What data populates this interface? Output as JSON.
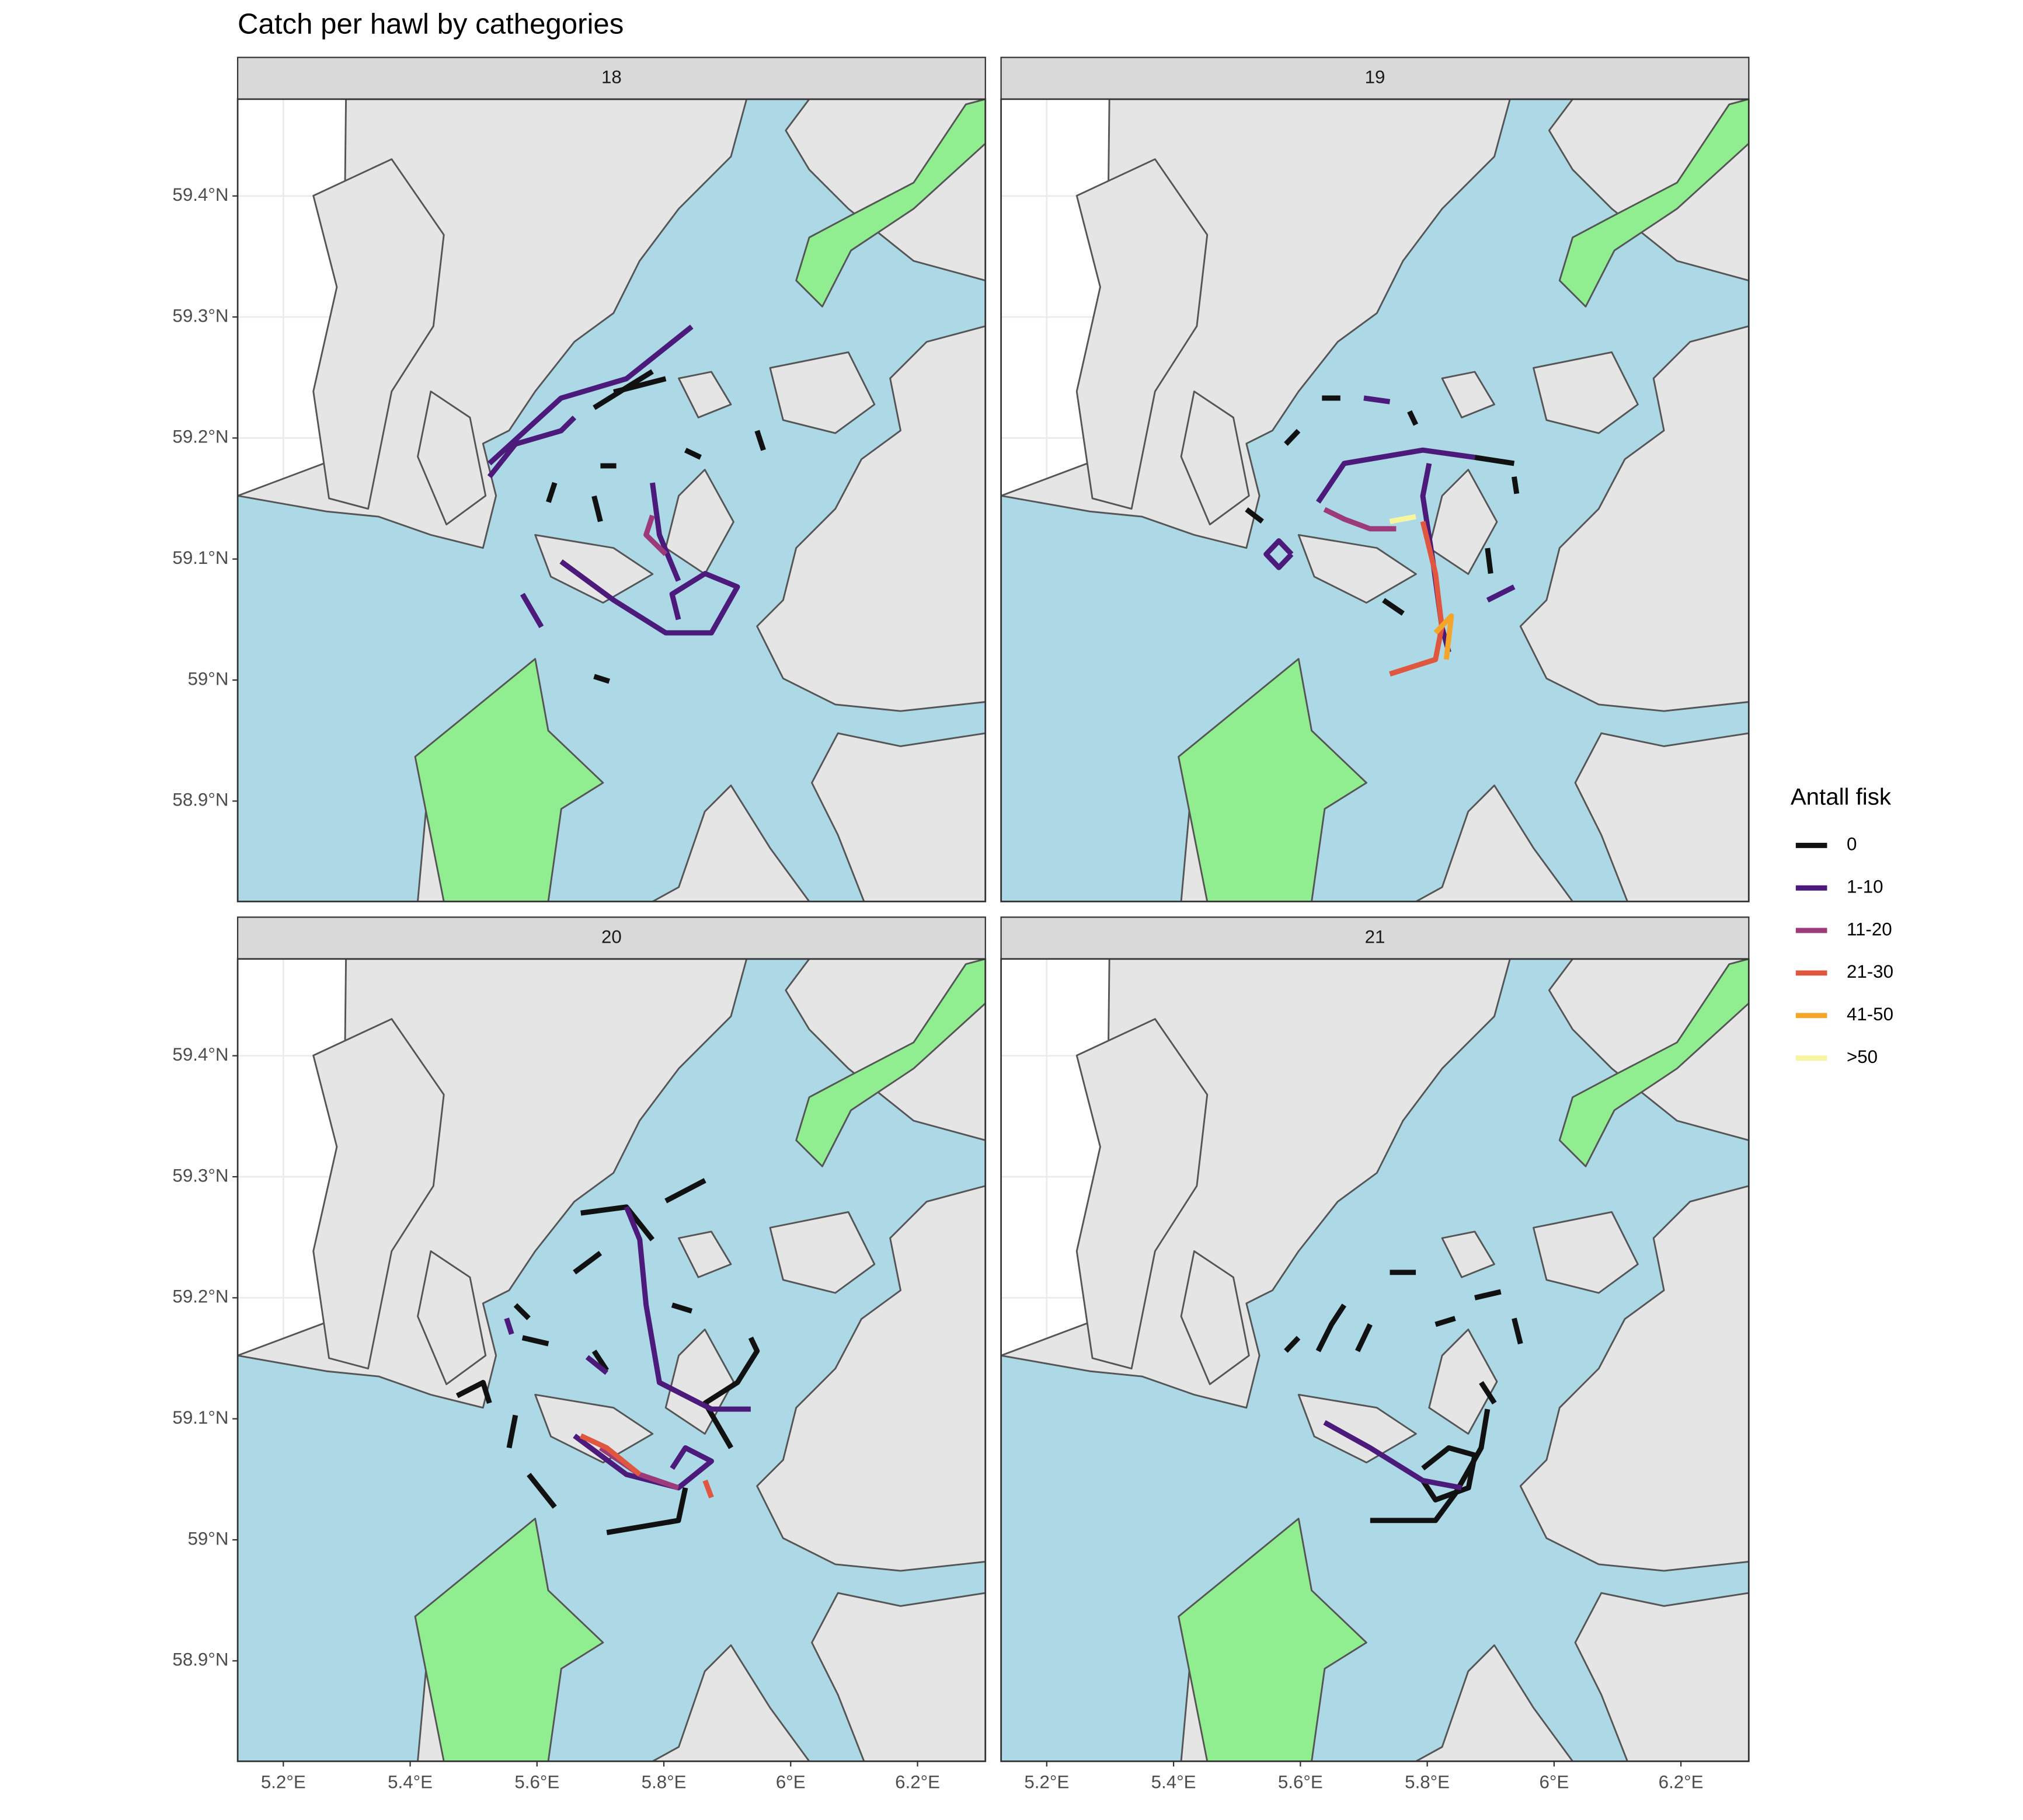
{
  "chart_data": {
    "type": "map",
    "title": "Catch per hawl by cathegories",
    "legend_title": "Antall fisk",
    "facets": [
      "18",
      "19",
      "20",
      "21"
    ],
    "xlim": [
      5.128,
      6.307
    ],
    "ylim": [
      58.817,
      59.48
    ],
    "xticks": [
      {
        "value": 5.2,
        "label": "5.2°E"
      },
      {
        "value": 5.4,
        "label": "5.4°E"
      },
      {
        "value": 5.6,
        "label": "5.6°E"
      },
      {
        "value": 5.8,
        "label": "5.8°E"
      },
      {
        "value": 6,
        "label": "6°E"
      },
      {
        "value": 6.2,
        "label": "6.2°E"
      }
    ],
    "yticks": [
      {
        "value": 58.9,
        "label": "58.9°N"
      },
      {
        "value": 59,
        "label": "59°N"
      },
      {
        "value": 59.1,
        "label": "59.1°N"
      },
      {
        "value": 59.2,
        "label": "59.2°N"
      },
      {
        "value": 59.3,
        "label": "59.3°N"
      },
      {
        "value": 59.4,
        "label": "59.4°N"
      }
    ],
    "grid": true,
    "series": [
      {
        "name": "0",
        "color": "#111111",
        "tracks": [
          [
            {
              "x": [
                5.69,
                5.782
              ],
              "y": [
                59.225,
                59.255
              ]
            },
            {
              "x": [
                5.721,
                5.803
              ],
              "y": [
                59.238,
                59.249
              ]
            },
            {
              "x": [
                5.7,
                5.725
              ],
              "y": [
                59.177,
                59.177
              ]
            },
            {
              "x": [
                5.628,
                5.618
              ],
              "y": [
                59.163,
                59.147
              ]
            },
            {
              "x": [
                5.69,
                5.7
              ],
              "y": [
                59.152,
                59.131
              ]
            },
            {
              "x": [
                5.834,
                5.858
              ],
              "y": [
                59.19,
                59.184
              ]
            },
            {
              "x": [
                5.947,
                5.957
              ],
              "y": [
                59.206,
                59.19
              ]
            },
            {
              "x": [
                5.69,
                5.714
              ],
              "y": [
                59.003,
                58.999
              ]
            }
          ],
          [
            {
              "x": [
                5.577,
                5.597
              ],
              "y": [
                59.195,
                59.206
              ]
            },
            {
              "x": [
                5.634,
                5.663
              ],
              "y": [
                59.233,
                59.233
              ]
            },
            {
              "x": [
                5.772,
                5.782
              ],
              "y": [
                59.222,
                59.211
              ]
            },
            {
              "x": [
                5.875,
                5.937
              ],
              "y": [
                59.184,
                59.179
              ]
            },
            {
              "x": [
                5.937,
                5.941
              ],
              "y": [
                59.168,
                59.154
              ]
            },
            {
              "x": [
                5.515,
                5.54
              ],
              "y": [
                59.141,
                59.131
              ]
            },
            {
              "x": [
                5.895,
                5.9
              ],
              "y": [
                59.109,
                59.088
              ]
            },
            {
              "x": [
                5.731,
                5.762
              ],
              "y": [
                59.066,
                59.055
              ]
            }
          ],
          [
            {
              "x": [
                5.669,
                5.741,
                5.782
              ],
              "y": [
                59.27,
                59.275,
                59.248
              ]
            },
            {
              "x": [
                5.803,
                5.865
              ],
              "y": [
                59.28,
                59.297
              ]
            },
            {
              "x": [
                5.659,
                5.7
              ],
              "y": [
                59.221,
                59.237
              ]
            },
            {
              "x": [
                5.566,
                5.587
              ],
              "y": [
                59.194,
                59.183
              ]
            },
            {
              "x": [
                5.577,
                5.618
              ],
              "y": [
                59.167,
                59.162
              ]
            },
            {
              "x": [
                5.69,
                5.71
              ],
              "y": [
                59.156,
                59.14
              ]
            },
            {
              "x": [
                5.474,
                5.515,
                5.525
              ],
              "y": [
                59.119,
                59.13,
                59.113
              ]
            },
            {
              "x": [
                5.566,
                5.556
              ],
              "y": [
                59.103,
                59.076
              ]
            },
            {
              "x": [
                5.587,
                5.628
              ],
              "y": [
                59.054,
                59.027
              ]
            },
            {
              "x": [
                5.71,
                5.823,
                5.834
              ],
              "y": [
                59.006,
                59.016,
                59.043
              ]
            },
            {
              "x": [
                5.937,
                5.947,
                5.916,
                5.865,
                5.906
              ],
              "y": [
                59.167,
                59.156,
                59.13,
                59.113,
                59.076
              ]
            },
            {
              "x": [
                5.813,
                5.844
              ],
              "y": [
                59.194,
                59.189
              ]
            }
          ],
          [
            {
              "x": [
                5.577,
                5.597
              ],
              "y": [
                59.156,
                59.167
              ]
            },
            {
              "x": [
                5.628,
                5.649,
                5.669
              ],
              "y": [
                59.156,
                59.178,
                59.194
              ]
            },
            {
              "x": [
                5.69,
                5.71
              ],
              "y": [
                59.156,
                59.178
              ]
            },
            {
              "x": [
                5.741,
                5.782
              ],
              "y": [
                59.221,
                59.221
              ]
            },
            {
              "x": [
                5.813,
                5.844
              ],
              "y": [
                59.178,
                59.183
              ]
            },
            {
              "x": [
                5.875,
                5.916
              ],
              "y": [
                59.2,
                59.205
              ]
            },
            {
              "x": [
                5.937,
                5.947
              ],
              "y": [
                59.183,
                59.162
              ]
            },
            {
              "x": [
                5.885,
                5.906
              ],
              "y": [
                59.13,
                59.113
              ]
            },
            {
              "x": [
                5.793,
                5.834,
                5.875,
                5.865,
                5.813,
                5.793
              ],
              "y": [
                59.059,
                59.076,
                59.07,
                59.043,
                59.033,
                59.049
              ]
            },
            {
              "x": [
                5.71,
                5.813,
                5.844,
                5.885,
                5.895
              ],
              "y": [
                59.016,
                59.016,
                59.038,
                59.076,
                59.108
              ]
            }
          ]
        ]
      },
      {
        "name": "1-10",
        "color": "#4b1a7a",
        "tracks": [
          [
            {
              "x": [
                5.525,
                5.638,
                5.741,
                5.844
              ],
              "y": [
                59.179,
                59.233,
                59.249,
                59.292
              ]
            },
            {
              "x": [
                5.525,
                5.566,
                5.638,
                5.659
              ],
              "y": [
                59.168,
                59.195,
                59.206,
                59.217
              ]
            },
            {
              "x": [
                5.638,
                5.721,
                5.803,
                5.875,
                5.916,
                5.865,
                5.813,
                5.823
              ],
              "y": [
                59.098,
                59.066,
                59.039,
                59.039,
                59.077,
                59.088,
                59.071,
                59.05
              ]
            },
            {
              "x": [
                5.782,
                5.793,
                5.823
              ],
              "y": [
                59.163,
                59.12,
                59.082
              ]
            },
            {
              "x": [
                5.577,
                5.607
              ],
              "y": [
                59.071,
                59.044
              ]
            }
          ],
          [
            {
              "x": [
                5.628,
                5.669,
                5.793,
                5.875
              ],
              "y": [
                59.147,
                59.179,
                59.19,
                59.184
              ]
            },
            {
              "x": [
                5.803,
                5.793,
                5.809,
                5.823,
                5.834
              ],
              "y": [
                59.179,
                59.152,
                59.098,
                59.044,
                59.023
              ]
            },
            {
              "x": [
                5.586,
                5.566,
                5.546,
                5.566,
                5.586
              ],
              "y": [
                59.104,
                59.115,
                59.104,
                59.093,
                59.104
              ]
            },
            {
              "x": [
                5.7,
                5.741
              ],
              "y": [
                59.233,
                59.23
              ]
            },
            {
              "x": [
                5.895,
                5.937
              ],
              "y": [
                59.066,
                59.077
              ]
            }
          ],
          [
            {
              "x": [
                5.741,
                5.762,
                5.772,
                5.793,
                5.875,
                5.937
              ],
              "y": [
                59.275,
                59.248,
                59.194,
                59.13,
                59.108,
                59.108
              ]
            },
            {
              "x": [
                5.552,
                5.56
              ],
              "y": [
                59.183,
                59.17
              ]
            },
            {
              "x": [
                5.679,
                5.71
              ],
              "y": [
                59.151,
                59.138
              ]
            },
            {
              "x": [
                5.659,
                5.741,
                5.823,
                5.875,
                5.834,
                5.813
              ],
              "y": [
                59.086,
                59.054,
                59.043,
                59.065,
                59.076,
                59.059
              ]
            }
          ],
          [
            {
              "x": [
                5.638,
                5.71,
                5.793,
                5.854
              ],
              "y": [
                59.097,
                59.076,
                59.049,
                59.043
              ]
            }
          ]
        ]
      },
      {
        "name": "11-20",
        "color": "#9c3a7a",
        "tracks": [
          [
            {
              "x": [
                5.782,
                5.772,
                5.803
              ],
              "y": [
                59.136,
                59.12,
                59.104
              ]
            }
          ],
          [
            {
              "x": [
                5.638,
                5.669,
                5.71,
                5.751
              ],
              "y": [
                59.141,
                59.133,
                59.125,
                59.125
              ]
            }
          ],
          [
            {
              "x": [
                5.7,
                5.762,
                5.823
              ],
              "y": [
                59.076,
                59.054,
                59.043
              ]
            }
          ],
          []
        ]
      },
      {
        "name": "21-30",
        "color": "#e0573f",
        "tracks": [
          [],
          [
            {
              "x": [
                5.793,
                5.813,
                5.823,
                5.813,
                5.741
              ],
              "y": [
                59.131,
                59.088,
                59.044,
                59.017,
                59.005
              ]
            }
          ],
          [
            {
              "x": [
                5.669,
                5.71,
                5.762
              ],
              "y": [
                59.086,
                59.076,
                59.054
              ]
            },
            {
              "x": [
                5.865,
                5.875
              ],
              "y": [
                59.049,
                59.035
              ]
            }
          ],
          []
        ]
      },
      {
        "name": "41-50",
        "color": "#f4a62a",
        "tracks": [
          [],
          [
            {
              "x": [
                5.813,
                5.838,
                5.83
              ],
              "y": [
                59.039,
                59.053,
                59.017
              ]
            }
          ],
          [],
          []
        ]
      },
      {
        "name": ">50",
        "color": "#f7f5a0",
        "tracks": [
          [],
          [
            {
              "x": [
                5.741,
                5.782
              ],
              "y": [
                59.131,
                59.135
              ]
            }
          ],
          [],
          []
        ]
      }
    ]
  }
}
